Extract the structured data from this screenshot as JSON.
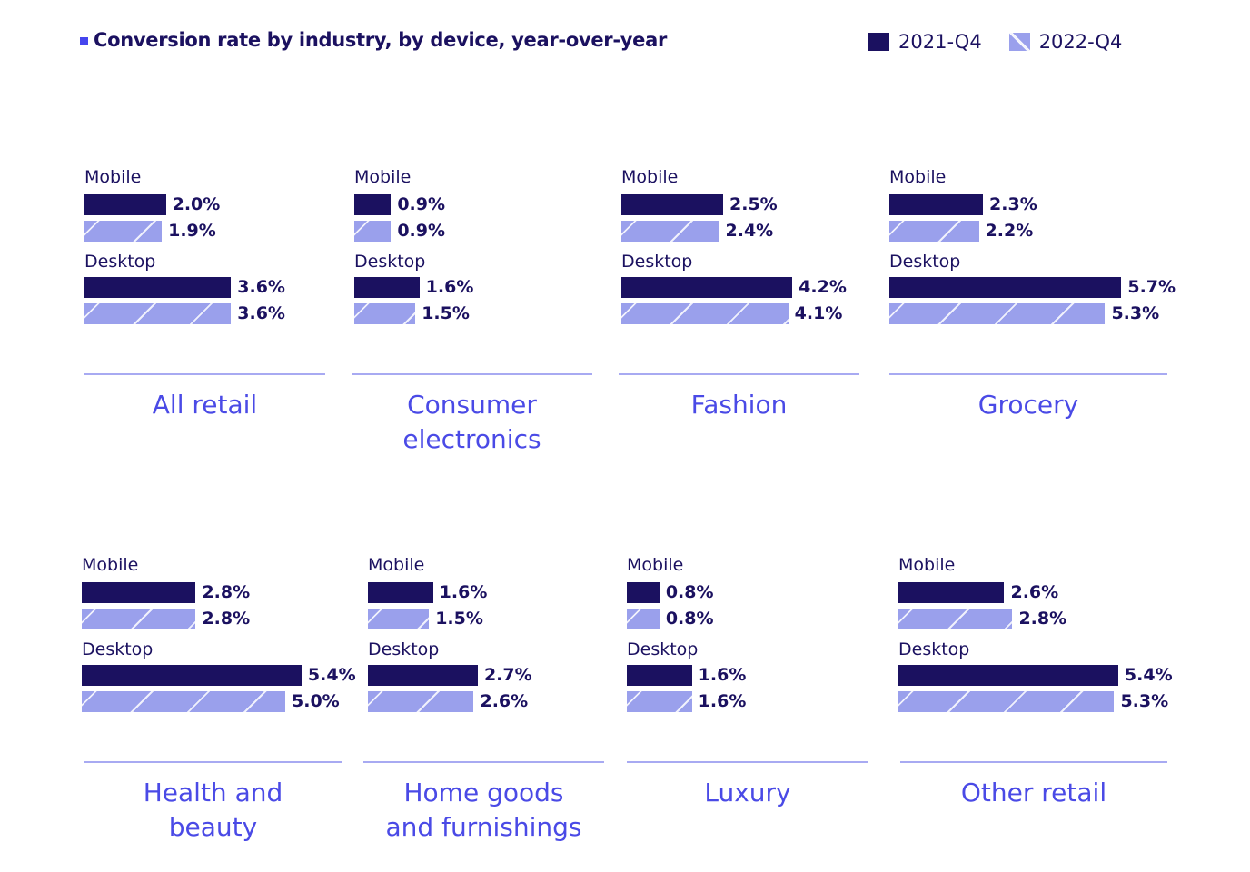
{
  "chart_data": {
    "type": "bar",
    "orientation": "horizontal",
    "title": "Conversion rate by industry, by device, year-over-year",
    "unit": "%",
    "legend": {
      "placement": "top-right",
      "entries": [
        "2021-Q4",
        "2022-Q4"
      ]
    },
    "series_names": [
      "2021-Q4",
      "2022-Q4"
    ],
    "devices": [
      "Mobile",
      "Desktop"
    ],
    "colors": {
      "2021-Q4": "#1b1160",
      "2022-Q4": "#9aa0ec",
      "category_label": "#4a4ae6",
      "title_bullet": "#4545ee"
    },
    "panels": [
      {
        "category": [
          "All retail"
        ],
        "mobile": [
          2.0,
          1.9
        ],
        "desktop": [
          3.6,
          3.6
        ],
        "labels": {
          "mobile": [
            "2.0%",
            "1.9%"
          ],
          "desktop": [
            "3.6%",
            "3.6%"
          ]
        }
      },
      {
        "category": [
          "Consumer",
          "electronics"
        ],
        "mobile": [
          0.9,
          0.9
        ],
        "desktop": [
          1.6,
          1.5
        ],
        "labels": {
          "mobile": [
            "0.9%",
            "0.9%"
          ],
          "desktop": [
            "1.6%",
            "1.5%"
          ]
        }
      },
      {
        "category": [
          "Fashion"
        ],
        "mobile": [
          2.5,
          2.4
        ],
        "desktop": [
          4.2,
          4.1
        ],
        "labels": {
          "mobile": [
            "2.5%",
            "2.4%"
          ],
          "desktop": [
            "4.2%",
            "4.1%"
          ]
        }
      },
      {
        "category": [
          "Grocery"
        ],
        "mobile": [
          2.3,
          2.2
        ],
        "desktop": [
          5.7,
          5.3
        ],
        "labels": {
          "mobile": [
            "2.3%",
            "2.2%"
          ],
          "desktop": [
            "5.7%",
            "5.3%"
          ]
        }
      },
      {
        "category": [
          "Health and",
          "beauty"
        ],
        "mobile": [
          2.8,
          2.8
        ],
        "desktop": [
          5.4,
          5.0
        ],
        "labels": {
          "mobile": [
            "2.8%",
            "2.8%"
          ],
          "desktop": [
            "5.4%",
            "5.0%"
          ]
        }
      },
      {
        "category": [
          "Home goods",
          "and furnishings"
        ],
        "mobile": [
          1.6,
          1.5
        ],
        "desktop": [
          2.7,
          2.6
        ],
        "labels": {
          "mobile": [
            "1.6%",
            "1.5%"
          ],
          "desktop": [
            "2.7%",
            "2.6%"
          ]
        }
      },
      {
        "category": [
          "Luxury"
        ],
        "mobile": [
          0.8,
          0.8
        ],
        "desktop": [
          1.6,
          1.6
        ],
        "labels": {
          "mobile": [
            "0.8%",
            "0.8%"
          ],
          "desktop": [
            "1.6%",
            "1.6%"
          ]
        }
      },
      {
        "category": [
          "Other retail"
        ],
        "mobile": [
          2.6,
          2.8
        ],
        "desktop": [
          5.4,
          5.3
        ],
        "labels": {
          "mobile": [
            "2.6%",
            "2.8%"
          ],
          "desktop": [
            "5.4%",
            "5.3%"
          ]
        }
      }
    ]
  }
}
